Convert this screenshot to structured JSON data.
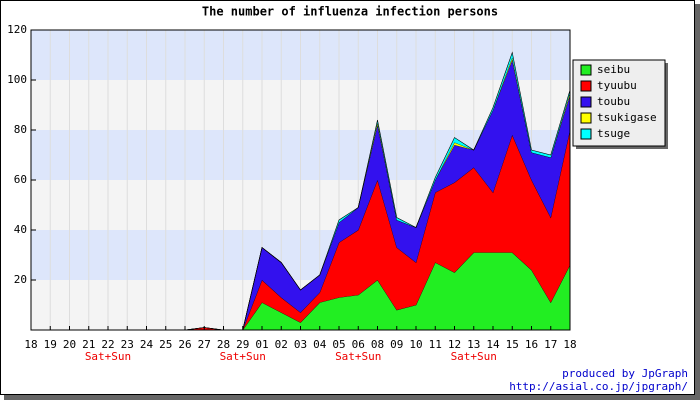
{
  "chart_data": {
    "type": "stacked_area",
    "title": "The number of influenza infection persons",
    "categories": [
      "18",
      "19",
      "20",
      "21",
      "22",
      "23",
      "24",
      "25",
      "26",
      "27",
      "28",
      "29",
      "01",
      "02",
      "03",
      "04",
      "05",
      "06",
      "08",
      "09",
      "10",
      "11",
      "12",
      "13",
      "14",
      "15",
      "16",
      "17",
      "18"
    ],
    "category_notes": [
      null,
      null,
      null,
      null,
      "Sat+Sun",
      null,
      null,
      null,
      null,
      null,
      null,
      "Sat+Sun",
      null,
      null,
      null,
      null,
      null,
      "Sat+Sun",
      null,
      null,
      null,
      null,
      null,
      "Sat+Sun",
      null,
      null,
      null,
      null,
      null
    ],
    "series": [
      {
        "name": "seibu",
        "color": "#22ee22",
        "values": [
          0,
          0,
          0,
          0,
          0,
          0,
          0,
          0,
          0,
          0,
          0,
          0,
          11,
          7,
          3,
          11,
          13,
          14,
          20,
          8,
          10,
          27,
          23,
          31,
          31,
          31,
          24,
          11,
          26
        ]
      },
      {
        "name": "tyuubu",
        "color": "#ff0000",
        "values": [
          0,
          0,
          0,
          0,
          0,
          0,
          0,
          0,
          0,
          1,
          0,
          0,
          9,
          6,
          4,
          4,
          22,
          26,
          40,
          25,
          17,
          28,
          36,
          34,
          24,
          47,
          36,
          34,
          54
        ]
      },
      {
        "name": "toubu",
        "color": "#3311ee",
        "values": [
          0,
          0,
          0,
          0,
          0,
          0,
          0,
          0,
          0,
          0,
          0,
          0,
          13,
          14,
          9,
          7,
          8,
          9,
          22,
          11,
          14,
          5,
          15,
          7,
          33,
          30,
          11,
          24,
          14
        ]
      },
      {
        "name": "tsukigase",
        "color": "#ffff00",
        "values": [
          0,
          0,
          0,
          0,
          0,
          0,
          0,
          0,
          0,
          0,
          0,
          0,
          0,
          0,
          0,
          0,
          0,
          0,
          1,
          0,
          0,
          0,
          1,
          0,
          0,
          1,
          0,
          0,
          1
        ]
      },
      {
        "name": "tsuge",
        "color": "#00ffff",
        "values": [
          0,
          0,
          0,
          0,
          0,
          0,
          0,
          0,
          0,
          0,
          0,
          0,
          0,
          0,
          0,
          0,
          1,
          0,
          1,
          1,
          0,
          1,
          2,
          0,
          1,
          2,
          1,
          1,
          1
        ]
      }
    ],
    "ylim": [
      0,
      120
    ],
    "yticks": [
      20,
      40,
      60,
      80,
      100,
      120
    ],
    "grid": true,
    "band_colors": [
      "#f4f4f4",
      "#dde6fb"
    ],
    "legend": "top-right",
    "credits": [
      "produced by JpGraph",
      "http://asial.co.jp/jpgraph/"
    ]
  }
}
